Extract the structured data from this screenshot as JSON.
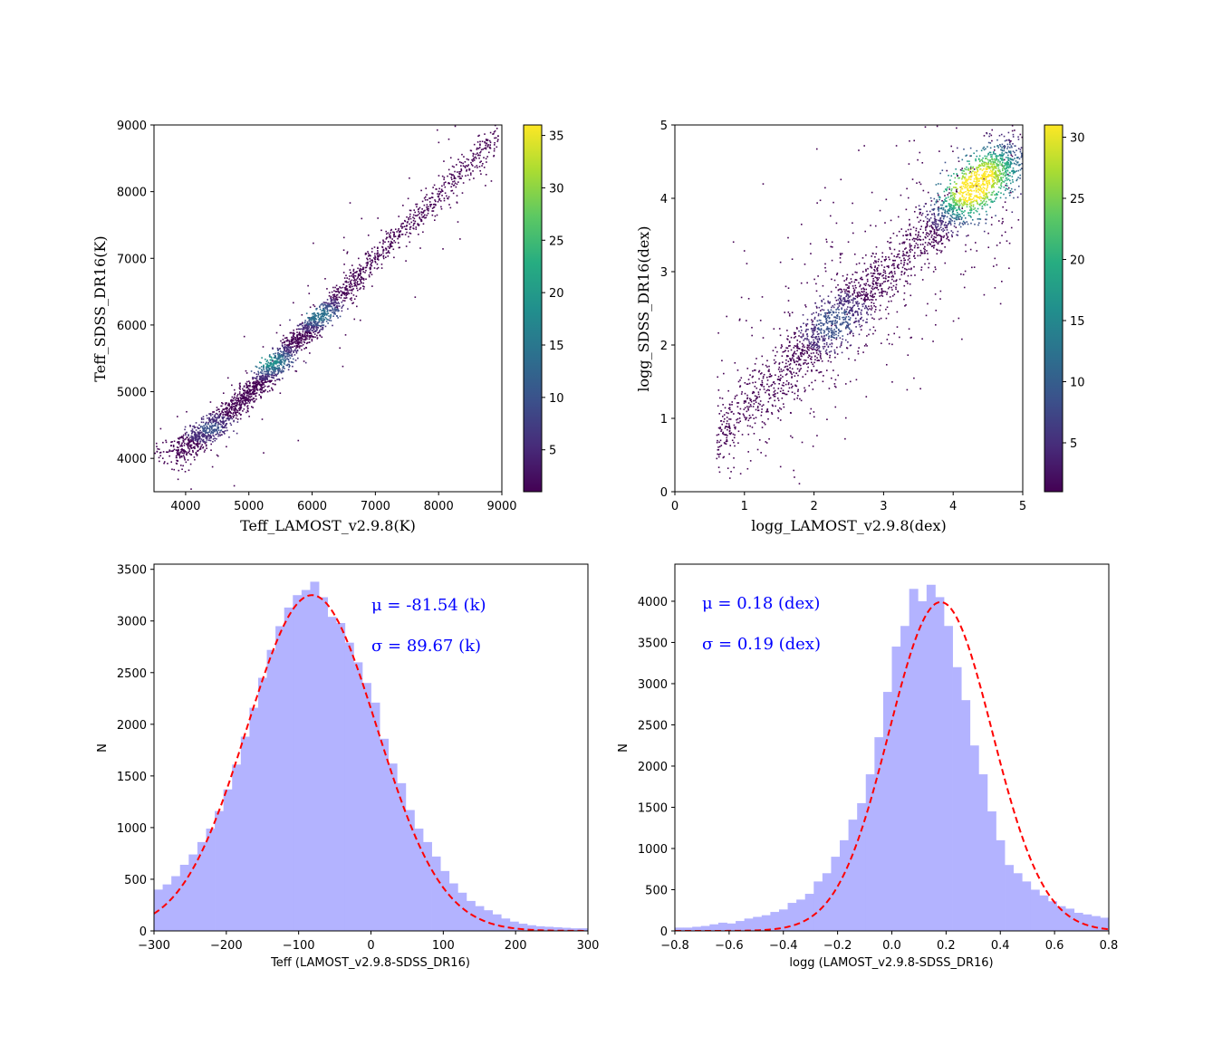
{
  "colors": {
    "hist_fill": "#b3b3ff",
    "fit_line": "#ff0000",
    "stat_text": "#0000ff",
    "viridis": [
      "#440154",
      "#472c7a",
      "#3b518b",
      "#2c718e",
      "#21908d",
      "#27ad81",
      "#5cc863",
      "#aadc32",
      "#fde725"
    ]
  },
  "chart_data": [
    {
      "type": "scatter",
      "subtype": "density-scatter",
      "xlabel": "Teff_LAMOST_v2.9.8(K)",
      "ylabel": "Teff_SDSS_DR16(K)",
      "xlim": [
        3500,
        9000
      ],
      "ylim": [
        3500,
        9000
      ],
      "xticks": [
        4000,
        5000,
        6000,
        7000,
        8000,
        9000
      ],
      "yticks": [
        4000,
        5000,
        6000,
        7000,
        8000,
        9000
      ],
      "colorbar": {
        "range": [
          1,
          36
        ],
        "ticks": [
          5,
          10,
          15,
          20,
          25,
          30,
          35
        ],
        "cmap": "viridis"
      },
      "trend": {
        "x": [
          3850,
          4200,
          4600,
          5000,
          5400,
          5800,
          6200,
          6600,
          7000,
          7400,
          7800,
          8200,
          8600,
          8950
        ],
        "y": [
          4100,
          4300,
          4600,
          4950,
          5380,
          5800,
          6180,
          6580,
          6980,
          7380,
          7760,
          8150,
          8520,
          8820
        ]
      },
      "dense_regions": [
        {
          "x": 5300,
          "y": 5450,
          "count": 18
        },
        {
          "x": 6100,
          "y": 6150,
          "count": 14
        },
        {
          "x": 4400,
          "y": 4450,
          "count": 8
        }
      ]
    },
    {
      "type": "scatter",
      "subtype": "density-scatter",
      "xlabel": "logg_LAMOST_v2.9.8(dex)",
      "ylabel": "logg_SDSS_DR16(dex)",
      "xlim": [
        0,
        5
      ],
      "ylim": [
        0,
        5
      ],
      "xticks": [
        0,
        1,
        2,
        3,
        4,
        5
      ],
      "yticks": [
        0,
        1,
        2,
        3,
        4,
        5
      ],
      "colorbar": {
        "range": [
          1,
          31
        ],
        "ticks": [
          5,
          10,
          15,
          20,
          25,
          30
        ],
        "cmap": "viridis"
      },
      "trend": {
        "x": [
          0.6,
          1.0,
          1.5,
          2.0,
          2.5,
          3.0,
          3.5,
          4.0,
          4.5,
          4.85
        ],
        "y": [
          0.7,
          1.2,
          1.6,
          2.1,
          2.5,
          2.9,
          3.4,
          3.9,
          4.3,
          4.5
        ]
      },
      "dense_regions": [
        {
          "x": 4.2,
          "y": 4.05,
          "count": 28
        },
        {
          "x": 4.55,
          "y": 4.4,
          "count": 22
        },
        {
          "x": 2.3,
          "y": 2.3,
          "count": 8
        }
      ]
    },
    {
      "type": "bar",
      "subtype": "histogram",
      "xlabel": "Teff (LAMOST_v2.9.8-SDSS_DR16)",
      "ylabel": "N",
      "xlim": [
        -300,
        300
      ],
      "ylim": [
        0,
        3550
      ],
      "xticks": [
        -300,
        -200,
        -100,
        0,
        100,
        200,
        300
      ],
      "yticks": [
        0,
        500,
        1000,
        1500,
        2000,
        2500,
        3000,
        3500
      ],
      "bin_edges_start": -300,
      "bin_width": 12,
      "values": [
        400,
        450,
        530,
        640,
        740,
        860,
        990,
        1160,
        1370,
        1610,
        1880,
        2160,
        2450,
        2720,
        2950,
        3130,
        3250,
        3300,
        3380,
        3230,
        3040,
        2980,
        2790,
        2600,
        2400,
        2210,
        1860,
        1620,
        1430,
        1170,
        990,
        860,
        720,
        580,
        460,
        370,
        290,
        240,
        200,
        160,
        120,
        90,
        70,
        55,
        45,
        40,
        35,
        30,
        25,
        25
      ],
      "fit": {
        "mu": -81.54,
        "sigma": 89.67,
        "amplitude": 3250
      },
      "annotations": [
        "μ = -81.54 (k)",
        "σ = 89.67 (k)"
      ]
    },
    {
      "type": "bar",
      "subtype": "histogram",
      "xlabel": "logg (LAMOST_v2.9.8-SDSS_DR16)",
      "ylabel": "N",
      "xlim": [
        -0.8,
        0.8
      ],
      "ylim": [
        0,
        4450
      ],
      "xticks": [
        -0.8,
        -0.6,
        -0.4,
        -0.2,
        0.0,
        0.2,
        0.4,
        0.6,
        0.8
      ],
      "yticks": [
        0,
        500,
        1000,
        1500,
        2000,
        2500,
        3000,
        3500,
        4000
      ],
      "bin_edges_start": -0.8,
      "bin_width": 0.032,
      "values": [
        40,
        40,
        50,
        60,
        80,
        100,
        90,
        120,
        150,
        170,
        190,
        230,
        260,
        340,
        380,
        450,
        600,
        700,
        900,
        1100,
        1350,
        1550,
        1900,
        2350,
        2900,
        3450,
        3700,
        4150,
        4000,
        4200,
        4050,
        3700,
        3200,
        2800,
        2250,
        1900,
        1450,
        1100,
        800,
        700,
        600,
        500,
        430,
        360,
        300,
        270,
        220,
        200,
        180,
        160
      ],
      "fit": {
        "mu": 0.18,
        "sigma": 0.19,
        "amplitude": 3990
      },
      "annotations": [
        "μ = 0.18 (dex)",
        "σ = 0.19 (dex)"
      ]
    }
  ]
}
